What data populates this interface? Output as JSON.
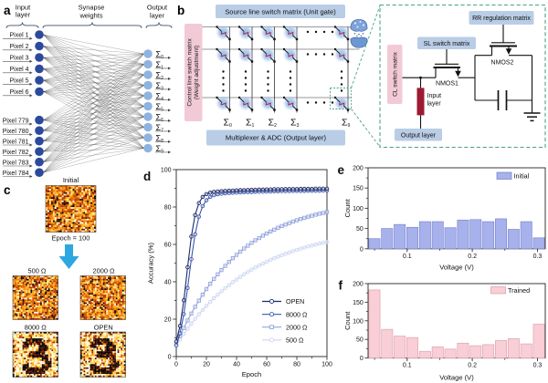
{
  "figure": {
    "type": "scientific-figure",
    "panels": [
      "a",
      "b",
      "c",
      "d",
      "e",
      "f"
    ]
  },
  "panel_a": {
    "letter": "a",
    "headers": {
      "input": [
        "Input",
        "layer"
      ],
      "synapse": [
        "Synapse",
        "weights"
      ],
      "output": [
        "Output",
        "layer"
      ]
    },
    "input_labels_top": [
      "Pixel 1",
      "Pixel 2",
      "Pixel 3",
      "Pixel 4",
      "Pixel 5",
      "Pixel 6"
    ],
    "input_labels_bottom": [
      "Pixel 779",
      "Pixel 780",
      "Pixel 781",
      "Pixel 782",
      "Pixel 783",
      "Pixel 784"
    ],
    "output_symbol": "Σ",
    "output_subscripts": [
      "0",
      "1",
      "2",
      "3",
      "4",
      "5",
      "6",
      "7",
      "8",
      "9"
    ],
    "colors": {
      "input_node": "#2c4a9d",
      "output_node": "#8fb3e0",
      "link": "#2a2a2a",
      "brace": "#3c4c66"
    }
  },
  "panel_b": {
    "letter": "b",
    "source_box": "Source line switch matrix (Unit gate)",
    "control_box_lines": [
      "Control line switch matrix",
      "(Weight adjustment)"
    ],
    "mux_box": "Multiplexer & ADC (Output layer)",
    "sigma_symbol": "Σ",
    "sigma_subscripts": [
      "0",
      "1",
      "2",
      "3",
      "9"
    ],
    "detail": {
      "rr_box": "RR regulation matrix",
      "sl_box": "SL switch matrix",
      "cl_box": "CL switch matrix",
      "nmos1": "NMOS1",
      "nmos2": "NMOS2",
      "input_layer_lines": [
        "Input",
        "layer"
      ],
      "output_box": "Output layer"
    },
    "colors": {
      "blue_box": "#b9cde6",
      "pink_box": "#f1cad6",
      "resistor": "#9c1a32",
      "dash": "#49a28d",
      "cell_glow": "#8cb4e6",
      "zigzag": "#a03456",
      "wire_h": "#9a9a9a",
      "wire_v": "#4a4a4a"
    }
  },
  "panel_c": {
    "letter": "c",
    "initial_title": "Initial",
    "epoch_caption": "Epoch = 100",
    "map_titles": [
      "500 Ω",
      "2000 Ω",
      "8000 Ω",
      "OPEN"
    ],
    "arrow_color": "#2da7e0",
    "heat_palette": [
      "#000000",
      "#4d0a00",
      "#7e1e00",
      "#b23700",
      "#d85800",
      "#ef7e00",
      "#fca311",
      "#ffc83d",
      "#ffe680",
      "#fffdf0"
    ],
    "digit_mask": [
      "..............",
      "..............",
      "....#####.....",
      "...#######....",
      "...##...###...",
      "........###...",
      ".....#####....",
      ".....######...",
      ".........##...",
      "..........##..",
      "...##....###..",
      "...########...",
      "....######....",
      ".............."
    ]
  },
  "chart_data": [
    {
      "id": "d",
      "type": "line",
      "letter": "d",
      "xlabel": "Epoch",
      "ylabel": "Accuracy (%)",
      "xlim": [
        0,
        100
      ],
      "ylim": [
        0,
        100
      ],
      "xticks": [
        0,
        20,
        40,
        60,
        80,
        100
      ],
      "yticks": [
        0,
        20,
        40,
        60,
        80,
        100
      ],
      "grid": false,
      "legend_position": "bottom-right",
      "x": [
        0,
        2.5,
        5,
        7.5,
        10,
        12.5,
        15,
        17.5,
        20,
        22.5,
        25,
        27.5,
        30,
        32.5,
        35,
        37.5,
        40,
        42.5,
        45,
        47.5,
        50,
        52.5,
        55,
        57.5,
        60,
        62.5,
        65,
        67.5,
        70,
        72.5,
        75,
        77.5,
        80,
        82.5,
        85,
        87.5,
        90,
        92.5,
        95,
        97.5,
        100
      ],
      "series": [
        {
          "name": "OPEN",
          "color": "#1e2a66",
          "marker": "circle",
          "values": [
            8.1,
            16.4,
            30.1,
            47.8,
            64.2,
            75.7,
            82.1,
            85.4,
            86.9,
            87.7,
            88.1,
            88.3,
            88.5,
            88.6,
            88.7,
            88.8,
            88.9,
            89.0,
            89.0,
            89.1,
            89.2,
            89.2,
            89.3,
            89.3,
            89.4,
            89.4,
            89.5,
            89.5,
            89.5,
            89.6,
            89.6,
            89.6,
            89.6,
            89.7,
            89.7,
            89.7,
            89.7,
            89.8,
            89.8,
            89.8,
            89.8
          ]
        },
        {
          "name": "8000 Ω",
          "color": "#3a57ad",
          "marker": "circle",
          "values": [
            6.0,
            12.4,
            22.7,
            36.7,
            52.1,
            65.4,
            74.8,
            80.5,
            83.6,
            85.4,
            86.3,
            86.8,
            87.1,
            87.3,
            87.5,
            87.6,
            87.7,
            87.8,
            87.9,
            88.0,
            88.0,
            88.1,
            88.2,
            88.2,
            88.3,
            88.3,
            88.4,
            88.4,
            88.5,
            88.5,
            88.5,
            88.6,
            88.6,
            88.6,
            88.6,
            88.7,
            88.7,
            88.7,
            88.7,
            88.8,
            88.8
          ]
        },
        {
          "name": "2000 Ω",
          "color": "#93a3dc",
          "marker": "square",
          "values": [
            6.5,
            11.0,
            15.3,
            19.3,
            23.0,
            26.6,
            29.9,
            33.1,
            36.1,
            38.9,
            41.5,
            44.0,
            46.3,
            48.5,
            50.6,
            52.6,
            54.4,
            56.1,
            57.8,
            59.3,
            60.8,
            62.2,
            63.4,
            64.7,
            65.8,
            66.9,
            67.9,
            68.9,
            69.8,
            70.6,
            71.4,
            72.2,
            72.9,
            73.6,
            74.2,
            74.8,
            75.3,
            75.9,
            76.4,
            76.8,
            77.3
          ]
        },
        {
          "name": "500 Ω",
          "color": "#ccd6f0",
          "marker": "circle",
          "values": [
            6.0,
            9.1,
            12.1,
            14.9,
            17.6,
            20.2,
            22.6,
            24.9,
            27.1,
            29.2,
            31.2,
            33.1,
            34.9,
            36.6,
            38.2,
            39.8,
            41.2,
            42.6,
            44.0,
            45.2,
            46.5,
            47.6,
            48.7,
            49.7,
            50.7,
            51.7,
            52.6,
            53.4,
            54.2,
            55.0,
            55.7,
            56.4,
            57.1,
            57.7,
            58.3,
            58.9,
            59.4,
            59.9,
            60.4,
            60.9,
            61.3
          ]
        }
      ]
    },
    {
      "id": "e",
      "type": "bar",
      "letter": "e",
      "xlabel": "Voltage (V)",
      "ylabel": "Count",
      "xlim": [
        0.04,
        0.312
      ],
      "ylim": [
        0,
        200
      ],
      "xticks": [
        0.1,
        0.2,
        0.3
      ],
      "yticks": [
        0,
        50,
        100,
        150,
        200
      ],
      "legend": "Initial",
      "bin_start": 0.04,
      "bin_width": 0.01943,
      "values": [
        25,
        50,
        60,
        53,
        67,
        67,
        52,
        71,
        72,
        67,
        74,
        48,
        67,
        27
      ],
      "bar_fill": "#a7b1ec",
      "bar_stroke": "#7e88cf"
    },
    {
      "id": "f",
      "type": "bar",
      "letter": "f",
      "xlabel": "Voltage (V)",
      "ylabel": "Count",
      "xlim": [
        0.04,
        0.312
      ],
      "ylim": [
        0,
        200
      ],
      "xticks": [
        0.1,
        0.2,
        0.3
      ],
      "yticks": [
        0,
        50,
        100,
        150,
        200
      ],
      "legend": "Trained",
      "bin_start": 0.04,
      "bin_width": 0.01943,
      "values": [
        183,
        77,
        59,
        55,
        18,
        30,
        24,
        40,
        33,
        36,
        47,
        52,
        38,
        91
      ],
      "bar_fill": "#f9ced6",
      "bar_stroke": "#dda6b0"
    }
  ]
}
